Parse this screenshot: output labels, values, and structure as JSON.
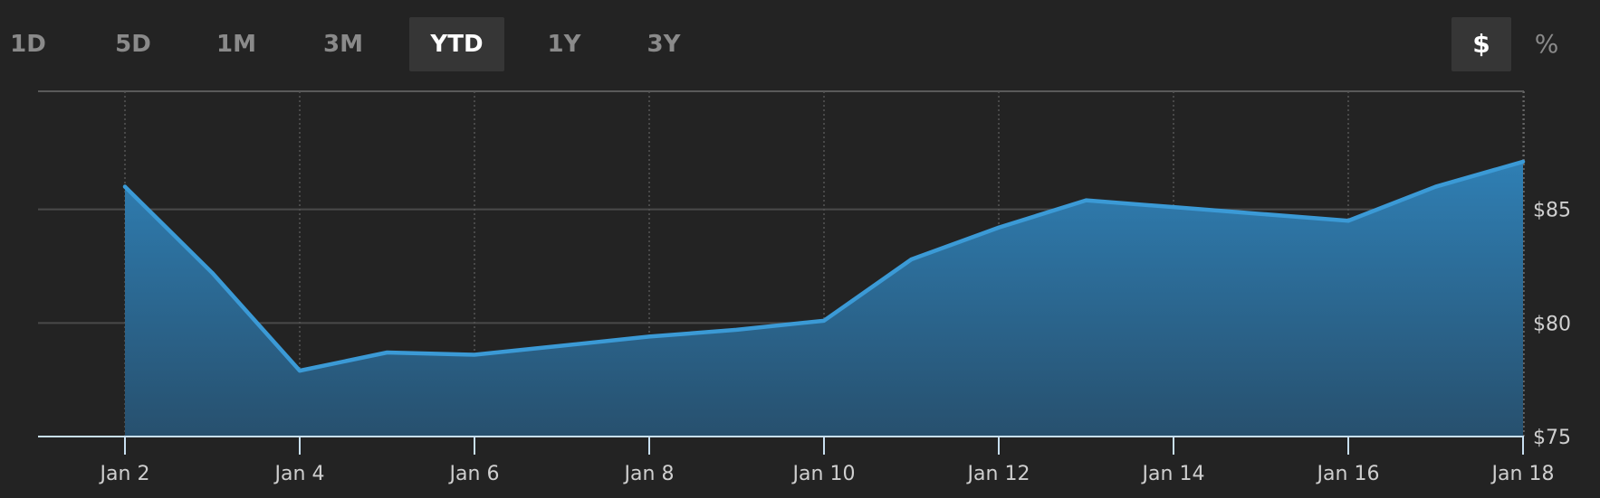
{
  "range_tabs": [
    {
      "label": "1D",
      "active": false
    },
    {
      "label": "5D",
      "active": false
    },
    {
      "label": "1M",
      "active": false
    },
    {
      "label": "3M",
      "active": false
    },
    {
      "label": "YTD",
      "active": true
    },
    {
      "label": "1Y",
      "active": false
    },
    {
      "label": "3Y",
      "active": false
    }
  ],
  "unit_tabs": [
    {
      "label": "$",
      "active": true
    },
    {
      "label": "%",
      "active": false
    }
  ],
  "colors": {
    "background": "#232323",
    "line": "#3b9ad6",
    "fill_top": "#2f7fb4",
    "fill_bottom": "#27506e",
    "grid": "#4a4a4a",
    "axis": "#c8dff0"
  },
  "chart_data": {
    "type": "area",
    "x": [
      "Jan 2",
      "Jan 3",
      "Jan 4",
      "Jan 5",
      "Jan 6",
      "Jan 7",
      "Jan 8",
      "Jan 9",
      "Jan 10",
      "Jan 11",
      "Jan 12",
      "Jan 13",
      "Jan 14",
      "Jan 15",
      "Jan 16",
      "Jan 17",
      "Jan 18"
    ],
    "values": [
      86.0,
      82.2,
      77.9,
      78.7,
      78.6,
      79.0,
      79.4,
      79.7,
      80.1,
      82.8,
      84.2,
      85.4,
      85.1,
      84.8,
      84.5,
      86.0,
      87.1
    ],
    "x_tick_labels": [
      "Jan 2",
      "Jan 4",
      "Jan 6",
      "Jan 8",
      "Jan 10",
      "Jan 12",
      "Jan 14",
      "Jan 16",
      "Jan 18"
    ],
    "y_tick_labels": [
      "$75",
      "$80",
      "$85"
    ],
    "y_ticks": [
      75,
      80,
      85
    ],
    "ylim": [
      75,
      90.2
    ],
    "title": "",
    "xlabel": "",
    "ylabel": "",
    "y_axis_side": "right",
    "grid": true
  }
}
